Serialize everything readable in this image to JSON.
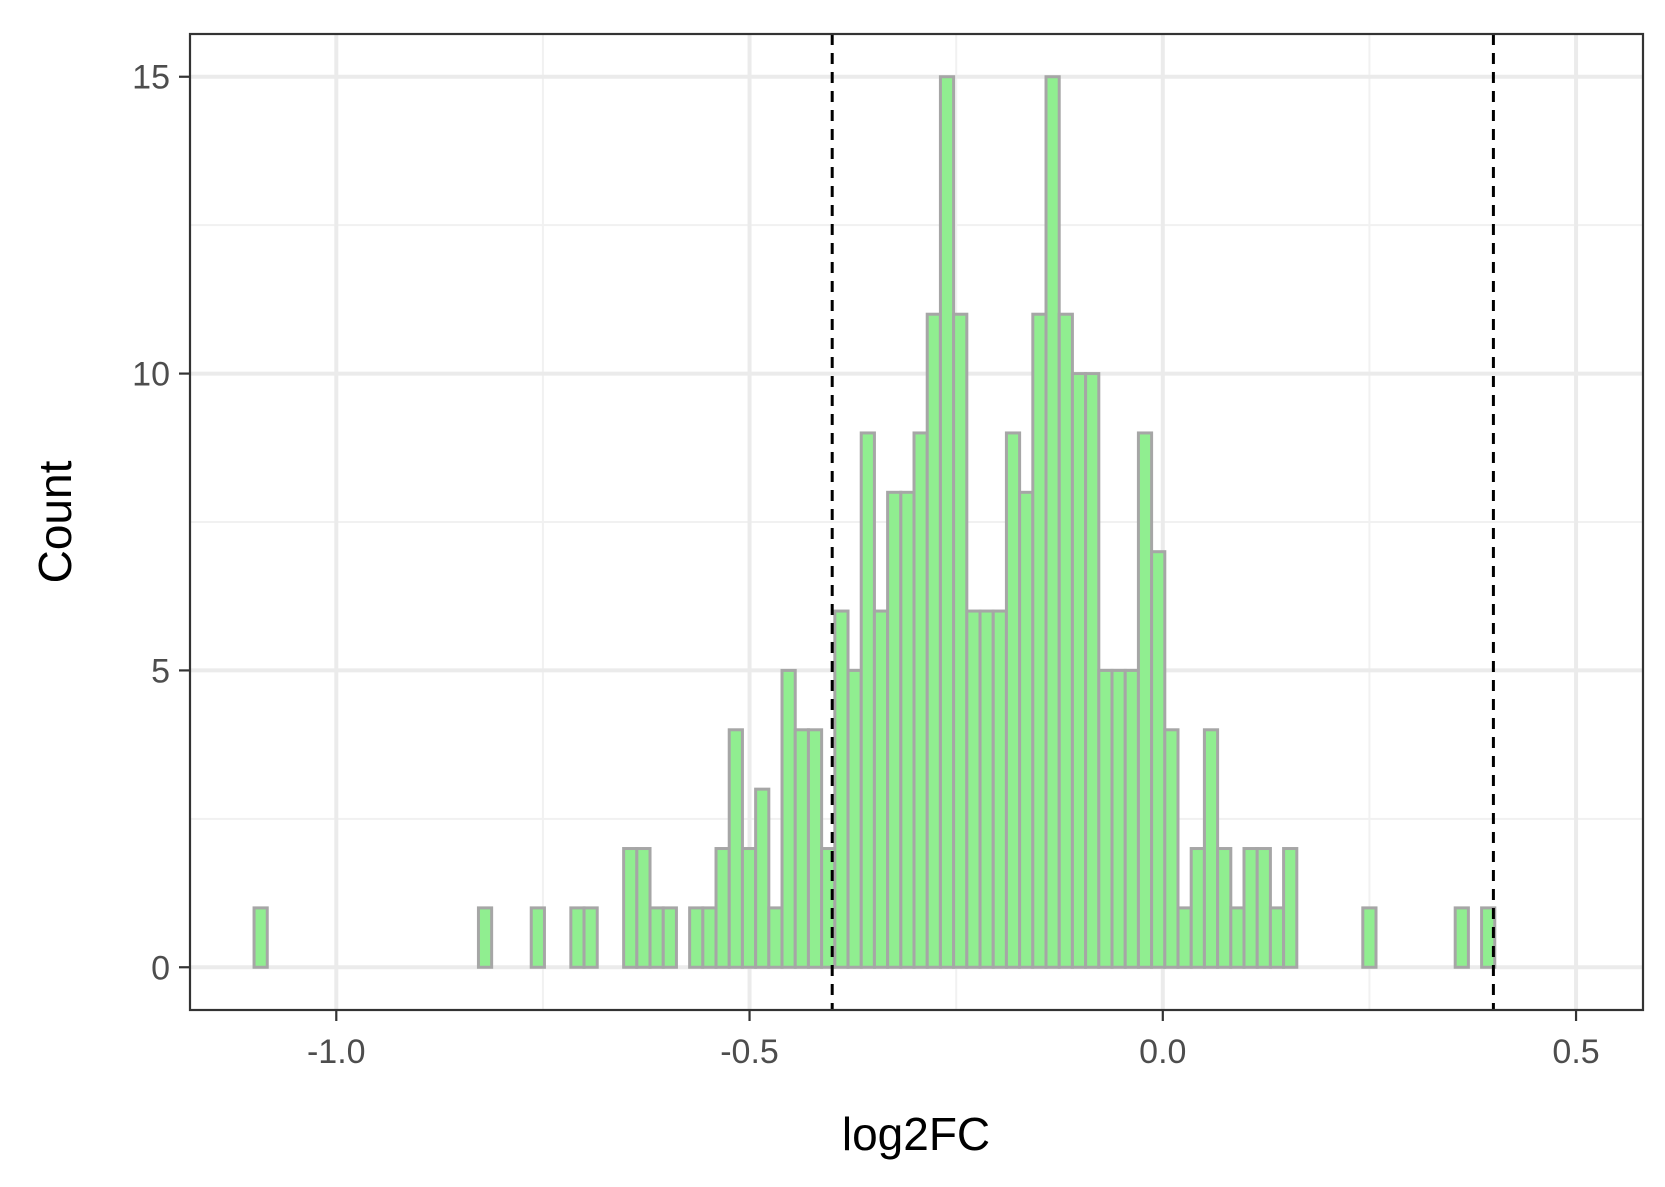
{
  "chart_data": {
    "type": "histogram",
    "title": "",
    "xlabel": "log2FC",
    "ylabel": "Count",
    "xlim": [
      -1.177,
      0.581
    ],
    "ylim": [
      -0.72,
      15.72
    ],
    "bin_width": 0.01597,
    "first_bin_start": -1.0995,
    "counts": [
      1,
      0,
      0,
      0,
      0,
      0,
      0,
      0,
      0,
      0,
      0,
      0,
      0,
      0,
      0,
      0,
      0,
      1,
      0,
      0,
      0,
      1,
      0,
      0,
      1,
      1,
      0,
      0,
      2,
      2,
      1,
      1,
      0,
      1,
      1,
      2,
      4,
      2,
      3,
      1,
      5,
      4,
      4,
      2,
      6,
      5,
      9,
      6,
      8,
      8,
      9,
      11,
      15,
      11,
      6,
      6,
      6,
      9,
      8,
      11,
      15,
      11,
      10,
      10,
      5,
      5,
      5,
      9,
      7,
      4,
      1,
      2,
      4,
      2,
      1,
      2,
      2,
      1,
      2,
      0,
      0,
      0,
      0,
      0,
      1,
      0,
      0,
      0,
      0,
      0,
      0,
      1,
      0,
      1
    ],
    "x_ticks": [
      -1.0,
      -0.5,
      0.0,
      0.5
    ],
    "x_tick_labels": [
      "-1.0",
      "-0.5",
      "0.0",
      "0.5"
    ],
    "y_ticks": [
      0,
      5,
      10,
      15
    ],
    "y_tick_labels": [
      "0",
      "5",
      "10",
      "15"
    ],
    "reference_lines": [
      -0.4,
      0.4
    ],
    "grid": true,
    "bar_fill": "#90EE90",
    "bar_stroke": "#A6A6A6",
    "grid_major_color": "#EBEBEB",
    "grid_minor_color": "#F1F1F1",
    "panel_border_color": "#333333",
    "reference_line_color": "#000000"
  }
}
